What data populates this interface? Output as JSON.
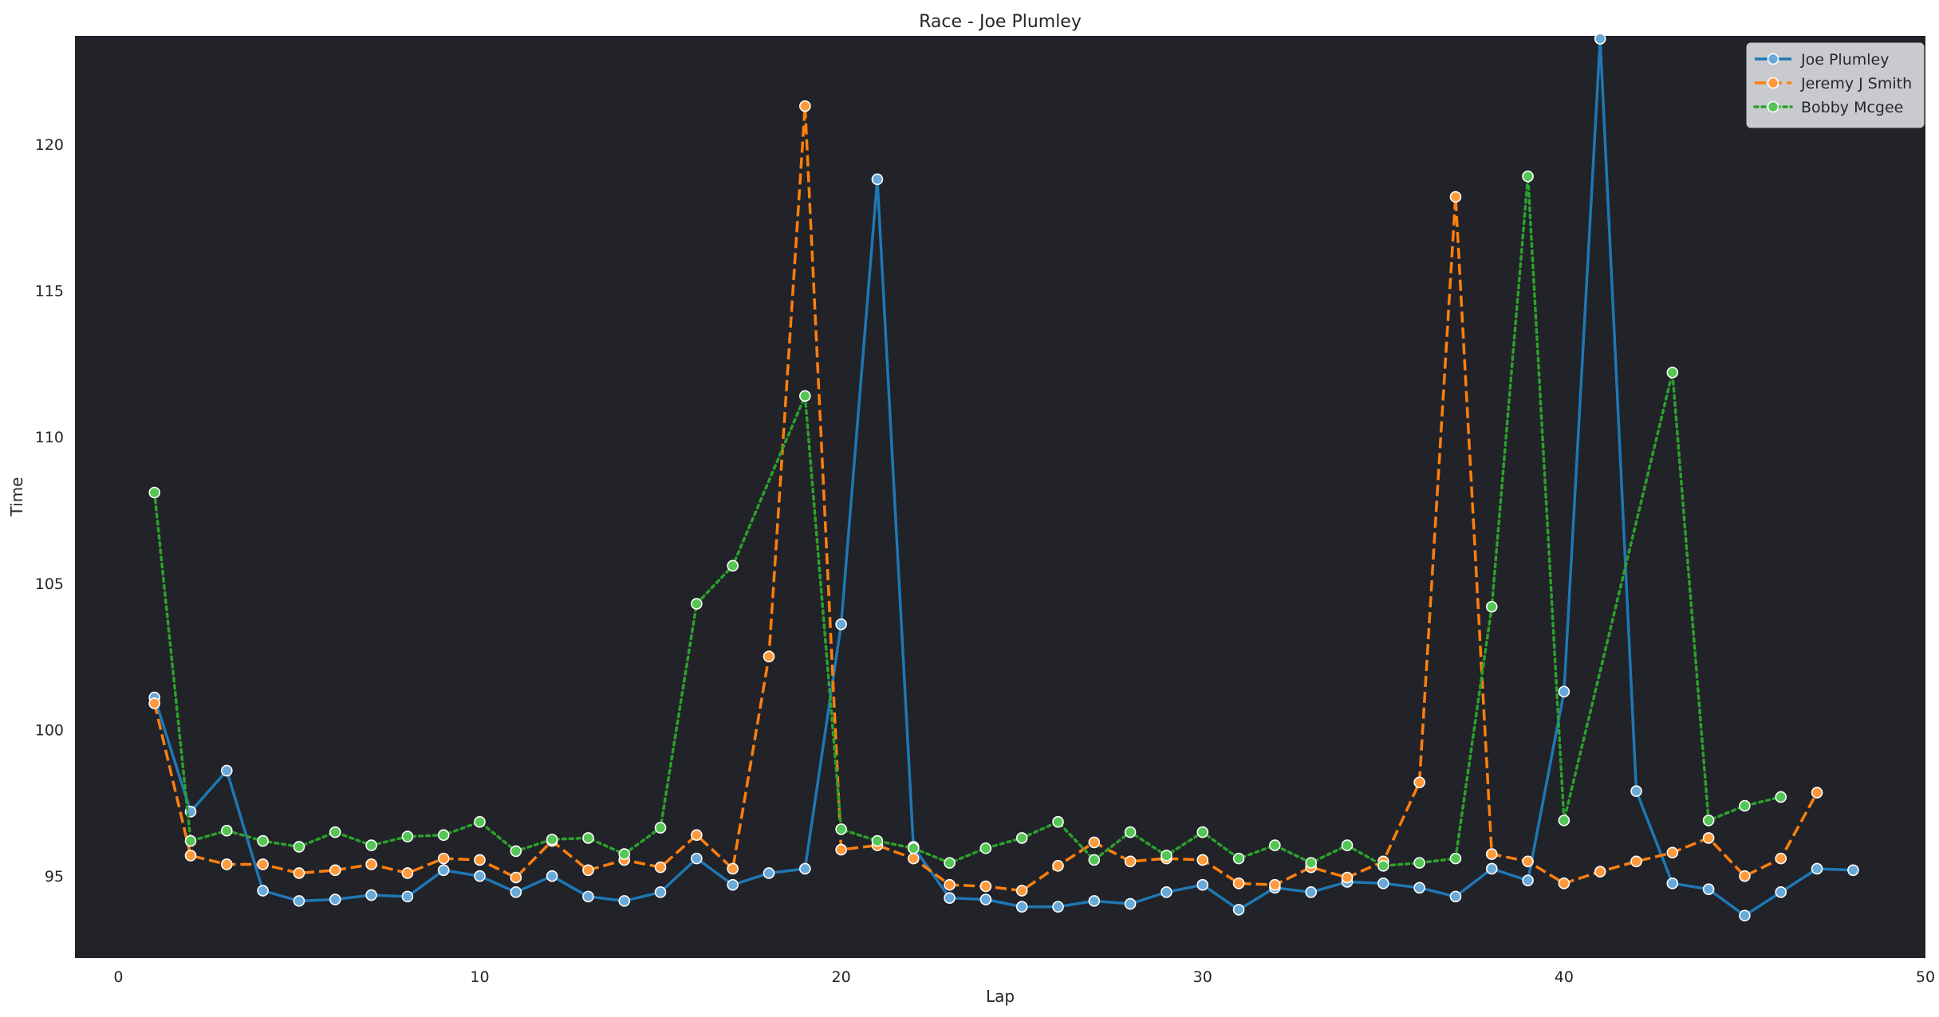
{
  "chart_data": {
    "type": "line",
    "title": "Race - Joe Plumley",
    "xlabel": "Lap",
    "ylabel": "Time",
    "xlim": [
      -1.2,
      50.0
    ],
    "ylim": [
      92.2,
      123.7
    ],
    "x_ticks": [
      0,
      10,
      20,
      30,
      40,
      50
    ],
    "y_ticks": [
      95,
      100,
      105,
      110,
      115,
      120
    ],
    "grid": false,
    "legend_position": "top-right",
    "plot_background": "#212328",
    "series": [
      {
        "name": "Joe Plumley",
        "color": "#1f77b4",
        "line_style": "solid",
        "x": [
          1,
          2,
          3,
          4,
          5,
          6,
          7,
          8,
          9,
          10,
          11,
          12,
          13,
          14,
          15,
          16,
          17,
          18,
          19,
          20,
          21,
          22,
          23,
          24,
          25,
          26,
          27,
          28,
          29,
          30,
          31,
          32,
          33,
          34,
          35,
          36,
          37,
          38,
          39,
          40,
          41,
          42,
          43,
          44,
          45,
          46,
          47,
          48
        ],
        "y": [
          101.1,
          97.2,
          98.6,
          94.5,
          94.15,
          94.2,
          94.35,
          94.3,
          95.2,
          95.0,
          94.45,
          95.0,
          94.3,
          94.15,
          94.45,
          95.6,
          94.7,
          95.1,
          95.25,
          103.6,
          118.8,
          96.0,
          94.25,
          94.2,
          93.95,
          93.95,
          94.15,
          94.05,
          94.45,
          94.7,
          93.85,
          94.6,
          94.45,
          94.8,
          94.75,
          94.6,
          94.3,
          95.25,
          94.85,
          101.3,
          123.6,
          97.9,
          94.75,
          94.55,
          93.65,
          94.45,
          95.25,
          95.2
        ]
      },
      {
        "name": "Jeremy J Smith",
        "color": "#ff7f0e",
        "line_style": "dashed",
        "x": [
          1,
          2,
          3,
          4,
          5,
          6,
          7,
          8,
          9,
          10,
          11,
          12,
          13,
          14,
          15,
          16,
          17,
          18,
          19,
          20,
          21,
          22,
          23,
          24,
          25,
          26,
          27,
          28,
          29,
          30,
          31,
          32,
          33,
          34,
          35,
          36,
          37,
          38,
          39,
          40,
          41,
          42,
          43,
          44,
          45,
          46,
          47
        ],
        "y": [
          100.9,
          95.7,
          95.4,
          95.4,
          95.1,
          95.2,
          95.4,
          95.1,
          95.6,
          95.55,
          94.95,
          96.2,
          95.2,
          95.55,
          95.3,
          96.4,
          95.25,
          102.5,
          121.3,
          95.9,
          96.05,
          95.6,
          94.7,
          94.65,
          94.5,
          95.35,
          96.15,
          95.5,
          95.6,
          95.55,
          94.75,
          94.7,
          95.3,
          94.95,
          95.5,
          98.2,
          118.2,
          95.75,
          95.5,
          94.75,
          95.15,
          95.5,
          95.8,
          96.3,
          95.0,
          95.6,
          97.85
        ]
      },
      {
        "name": "Bobby Mcgee",
        "color": "#2ca02c",
        "line_style": "dotted",
        "x": [
          1,
          2,
          3,
          4,
          5,
          6,
          7,
          8,
          9,
          10,
          11,
          12,
          13,
          14,
          15,
          16,
          17,
          19,
          20,
          21,
          22,
          23,
          24,
          25,
          26,
          27,
          28,
          29,
          30,
          31,
          32,
          33,
          34,
          35,
          36,
          37,
          38,
          39,
          40,
          43,
          44,
          45,
          46
        ],
        "y": [
          108.1,
          96.2,
          96.55,
          96.2,
          96.0,
          96.5,
          96.05,
          96.35,
          96.4,
          96.85,
          95.85,
          96.25,
          96.3,
          95.75,
          96.65,
          104.3,
          105.6,
          111.4,
          96.6,
          96.2,
          95.95,
          95.45,
          95.95,
          96.3,
          96.85,
          95.55,
          96.5,
          95.7,
          96.5,
          95.6,
          96.05,
          95.45,
          96.05,
          95.35,
          95.45,
          95.6,
          104.2,
          118.9,
          96.9,
          112.2,
          96.9,
          97.4,
          97.7
        ]
      }
    ]
  }
}
